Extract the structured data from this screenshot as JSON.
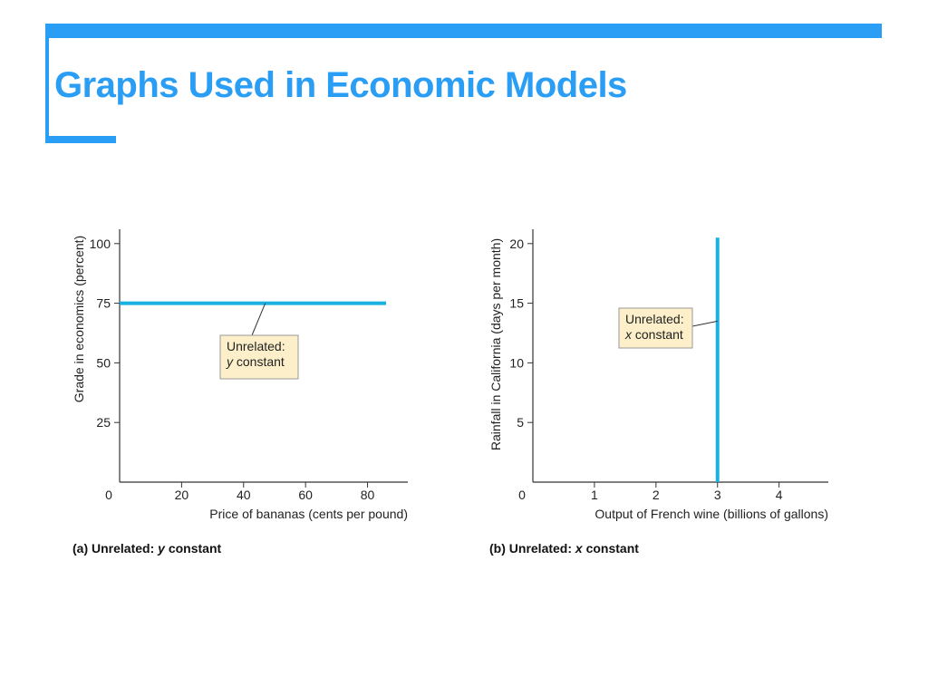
{
  "slide": {
    "title": "Graphs Used in Economic Models",
    "accent_color": "#2a9df4"
  },
  "chart_data": [
    {
      "type": "line",
      "title": "",
      "caption": "(a) Unrelated: y constant",
      "xlabel": "Price of bananas (cents per pound)",
      "ylabel": "Grade in economics (percent)",
      "origin_label": "0",
      "xticks": [
        20,
        40,
        60,
        80
      ],
      "yticks": [
        25,
        50,
        75,
        100
      ],
      "xlim": [
        0,
        93
      ],
      "ylim": [
        0,
        106
      ],
      "series": [
        {
          "x": [
            0,
            86
          ],
          "y": [
            75,
            75
          ],
          "color": "#1ab0e0"
        }
      ],
      "annotation": {
        "lines": [
          "Unrelated:",
          "y constant"
        ],
        "pointer_x": 47,
        "pointer_y": 75
      },
      "grid": false
    },
    {
      "type": "line",
      "title": "",
      "caption": "(b) Unrelated: x constant",
      "xlabel": "Output of French wine (billions of gallons)",
      "ylabel": "Rainfall in California (days per month)",
      "origin_label": "0",
      "xticks": [
        1,
        2,
        3,
        4
      ],
      "yticks": [
        5,
        10,
        15,
        20
      ],
      "xlim": [
        0,
        4.8
      ],
      "ylim": [
        0,
        21.2
      ],
      "series": [
        {
          "x": [
            3,
            3
          ],
          "y": [
            0,
            20.5
          ],
          "color": "#1ab0e0"
        }
      ],
      "annotation": {
        "lines": [
          "Unrelated:",
          "x constant"
        ],
        "pointer_x": 3,
        "pointer_y": 13.5
      },
      "grid": false
    }
  ]
}
